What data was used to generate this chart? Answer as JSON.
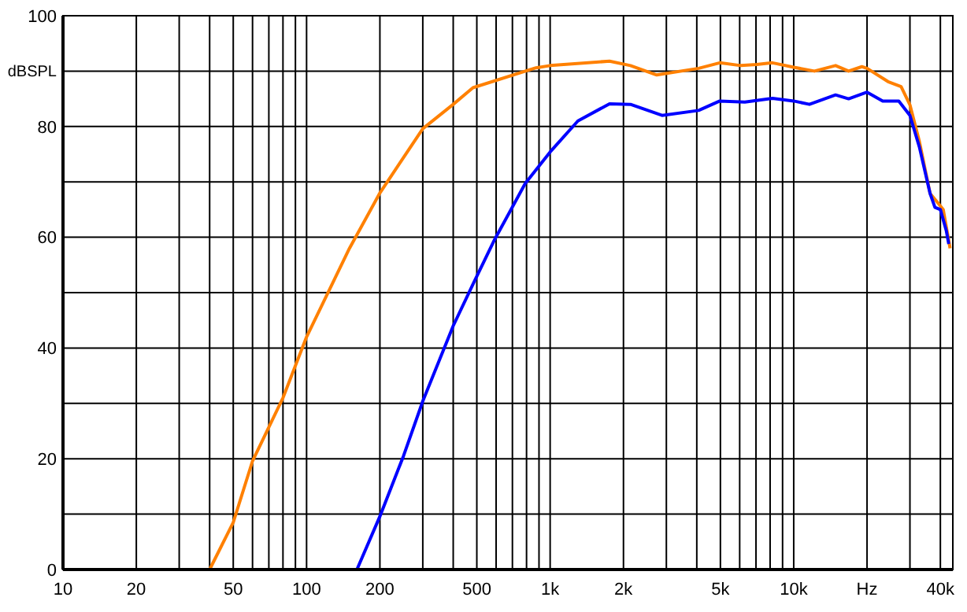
{
  "chart_data": {
    "type": "line",
    "log": "x",
    "grid": true,
    "xlim": [
      10,
      45000
    ],
    "ylim": [
      0,
      100
    ],
    "xticks": [
      10,
      20,
      {
        "value": 30,
        "label": null
      },
      {
        "value": 40,
        "label": null
      },
      50,
      {
        "value": 60,
        "label": null
      },
      {
        "value": 70,
        "label": null
      },
      {
        "value": 80,
        "label": null
      },
      {
        "value": 90,
        "label": null
      },
      100,
      200,
      {
        "value": 300,
        "label": null
      },
      {
        "value": 400,
        "label": null
      },
      500,
      {
        "value": 600,
        "label": null
      },
      {
        "value": 700,
        "label": null
      },
      {
        "value": 800,
        "label": null
      },
      {
        "value": 900,
        "label": null
      },
      {
        "value": 1000,
        "label": "1k"
      },
      {
        "value": 2000,
        "label": "2k"
      },
      {
        "value": 3000,
        "label": null
      },
      {
        "value": 4000,
        "label": null
      },
      {
        "value": 5000,
        "label": "5k"
      },
      {
        "value": 6000,
        "label": null
      },
      {
        "value": 7000,
        "label": null
      },
      {
        "value": 8000,
        "label": null
      },
      {
        "value": 9000,
        "label": null
      },
      {
        "value": 10000,
        "label": "10k"
      },
      {
        "value": 20000,
        "label": "Hz"
      },
      {
        "value": 30000,
        "label": null
      },
      {
        "value": 40000,
        "label": "40k"
      }
    ],
    "yticks": [
      0,
      {
        "value": 10,
        "label": null
      },
      20,
      {
        "value": 30,
        "label": null
      },
      40,
      {
        "value": 50,
        "label": null
      },
      60,
      {
        "value": 70,
        "label": null
      },
      80,
      {
        "value": 90,
        "label": "dBSPL"
      },
      100
    ],
    "series": [
      {
        "color": "#ff8000",
        "x": [
          40,
          50,
          60,
          80,
          100,
          150,
          200,
          300,
          400,
          482,
          875,
          1000,
          1753,
          2137,
          2740,
          4070,
          4970,
          6070,
          7040,
          8180,
          10000,
          12160,
          14850,
          16800,
          19050,
          20000,
          24400,
          27600,
          30000,
          32800,
          36300,
          39100,
          41100,
          43850
        ],
        "values": [
          0,
          8.5,
          19.6,
          31,
          42,
          58,
          68,
          79.6,
          84,
          87,
          90.6,
          91,
          91.8,
          91,
          89.3,
          90.5,
          91.5,
          91,
          91.2,
          91.5,
          90.7,
          90,
          91,
          90,
          90.8,
          90.5,
          88.1,
          87.2,
          83.9,
          77.3,
          67.9,
          66.2,
          65,
          58
        ]
      },
      {
        "color": "#0000ff",
        "x": [
          161,
          200,
          250,
          300,
          400,
          482,
          587,
          790,
          1000,
          1300,
          1753,
          2137,
          2880,
          4070,
          4970,
          6300,
          8180,
          10000,
          11600,
          14850,
          16800,
          20000,
          23200,
          27000,
          30000,
          32800,
          36300,
          38000,
          40000,
          42300,
          43300
        ],
        "values": [
          0,
          9.6,
          20.5,
          30.4,
          44,
          51.5,
          59.3,
          69.7,
          75.4,
          81,
          84.1,
          84,
          82,
          82.9,
          84.6,
          84.4,
          85.1,
          84.6,
          84,
          85.7,
          85,
          86.2,
          84.6,
          84.6,
          82,
          76.3,
          67.9,
          65.4,
          65,
          61.2,
          58.8
        ]
      }
    ]
  }
}
